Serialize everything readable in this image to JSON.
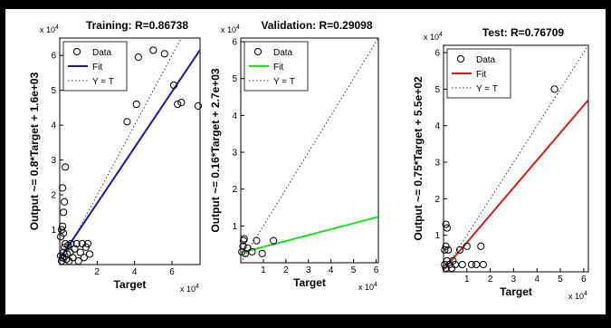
{
  "chart_data": [
    {
      "type": "scatter",
      "title": "Training: R=0.86738",
      "xlabel": "Target",
      "ylabel": "Output ~= 0.8*Target + 1.6e+03",
      "xlim": [
        0,
        7.5
      ],
      "ylim": [
        0,
        6.5
      ],
      "xticks": [
        2,
        4,
        6
      ],
      "yticks": [
        1,
        2,
        3,
        4,
        5,
        6
      ],
      "multiplier": "x 10",
      "multiplier_exp": "4",
      "fit_color": "#1a1a9a",
      "legend": {
        "data": "Data",
        "fit": "Fit",
        "ident": "Y = T"
      },
      "fit": {
        "slope": 0.8,
        "intercept": 0.16
      },
      "points": [
        [
          0.1,
          0.1
        ],
        [
          0.15,
          0.2
        ],
        [
          0.2,
          0.35
        ],
        [
          0.25,
          0.5
        ],
        [
          0.3,
          0.6
        ],
        [
          0.35,
          0.15
        ],
        [
          0.4,
          0.3
        ],
        [
          0.45,
          0.55
        ],
        [
          0.5,
          0.1
        ],
        [
          0.55,
          0.35
        ],
        [
          0.6,
          0.6
        ],
        [
          0.7,
          0.2
        ],
        [
          0.8,
          0.45
        ],
        [
          0.9,
          0.6
        ],
        [
          1.0,
          0.1
        ],
        [
          1.1,
          0.35
        ],
        [
          1.2,
          0.6
        ],
        [
          1.3,
          0.2
        ],
        [
          1.4,
          0.5
        ],
        [
          1.5,
          0.6
        ],
        [
          1.6,
          0.3
        ],
        [
          0.05,
          0.8
        ],
        [
          0.1,
          1.0
        ],
        [
          0.15,
          1.1
        ],
        [
          0.2,
          1.5
        ],
        [
          0.25,
          1.8
        ],
        [
          0.15,
          2.2
        ],
        [
          0.3,
          2.8
        ],
        [
          0.2,
          0.9
        ],
        [
          0.05,
          0.25
        ],
        [
          3.6,
          4.1
        ],
        [
          4.1,
          4.6
        ],
        [
          4.2,
          5.95
        ],
        [
          5.0,
          6.15
        ],
        [
          5.6,
          6.05
        ],
        [
          6.1,
          5.15
        ],
        [
          6.3,
          4.6
        ],
        [
          6.5,
          4.65
        ],
        [
          7.4,
          4.55
        ]
      ]
    },
    {
      "type": "scatter",
      "title": "Validation: R=0.29098",
      "xlabel": "Target",
      "ylabel": "Output ~= 0.16*Target + 2.7e+03",
      "xlim": [
        0,
        6.1
      ],
      "ylim": [
        0,
        6.1
      ],
      "xticks": [
        1,
        2,
        3,
        4,
        5,
        6
      ],
      "yticks": [
        1,
        2,
        3,
        4,
        5,
        6
      ],
      "multiplier": "x 10",
      "multiplier_exp": "4",
      "fit_color": "#22dd22",
      "legend": {
        "data": "Data",
        "fit": "Fit",
        "ident": "Y = T"
      },
      "fit": {
        "slope": 0.16,
        "intercept": 0.27
      },
      "points": [
        [
          0.05,
          0.3
        ],
        [
          0.1,
          0.45
        ],
        [
          0.12,
          0.6
        ],
        [
          0.2,
          0.25
        ],
        [
          0.3,
          0.4
        ],
        [
          0.5,
          0.3
        ],
        [
          0.7,
          0.6
        ],
        [
          0.95,
          0.25
        ],
        [
          1.45,
          0.6
        ],
        [
          0.15,
          0.65
        ]
      ]
    },
    {
      "type": "scatter",
      "title": "Test: R=0.76709",
      "xlabel": "Target",
      "ylabel": "Output ~= 0.75*Target + 5.5e+02",
      "xlim": [
        0,
        6.2
      ],
      "ylim": [
        0,
        6.2
      ],
      "xticks": [
        1,
        2,
        3,
        4,
        5,
        6
      ],
      "yticks": [
        1,
        2,
        3,
        4,
        5,
        6
      ],
      "multiplier": "x 10",
      "multiplier_exp": "4",
      "fit_color": "#cc1f1f",
      "legend": {
        "data": "Data",
        "fit": "Fit",
        "ident": "Y = T"
      },
      "fit": {
        "slope": 0.75,
        "intercept": 0.055
      },
      "points": [
        [
          0.1,
          1.3
        ],
        [
          0.15,
          1.2
        ],
        [
          0.05,
          0.6
        ],
        [
          0.1,
          0.7
        ],
        [
          0.2,
          0.6
        ],
        [
          0.05,
          0.2
        ],
        [
          0.1,
          0.1
        ],
        [
          0.15,
          0.3
        ],
        [
          0.25,
          0.2
        ],
        [
          0.35,
          0.1
        ],
        [
          0.4,
          0.3
        ],
        [
          0.5,
          0.2
        ],
        [
          0.7,
          0.6
        ],
        [
          0.8,
          0.2
        ],
        [
          1.0,
          0.7
        ],
        [
          1.2,
          0.2
        ],
        [
          1.4,
          0.2
        ],
        [
          1.6,
          0.7
        ],
        [
          1.7,
          0.2
        ],
        [
          4.75,
          5.0
        ]
      ]
    }
  ]
}
